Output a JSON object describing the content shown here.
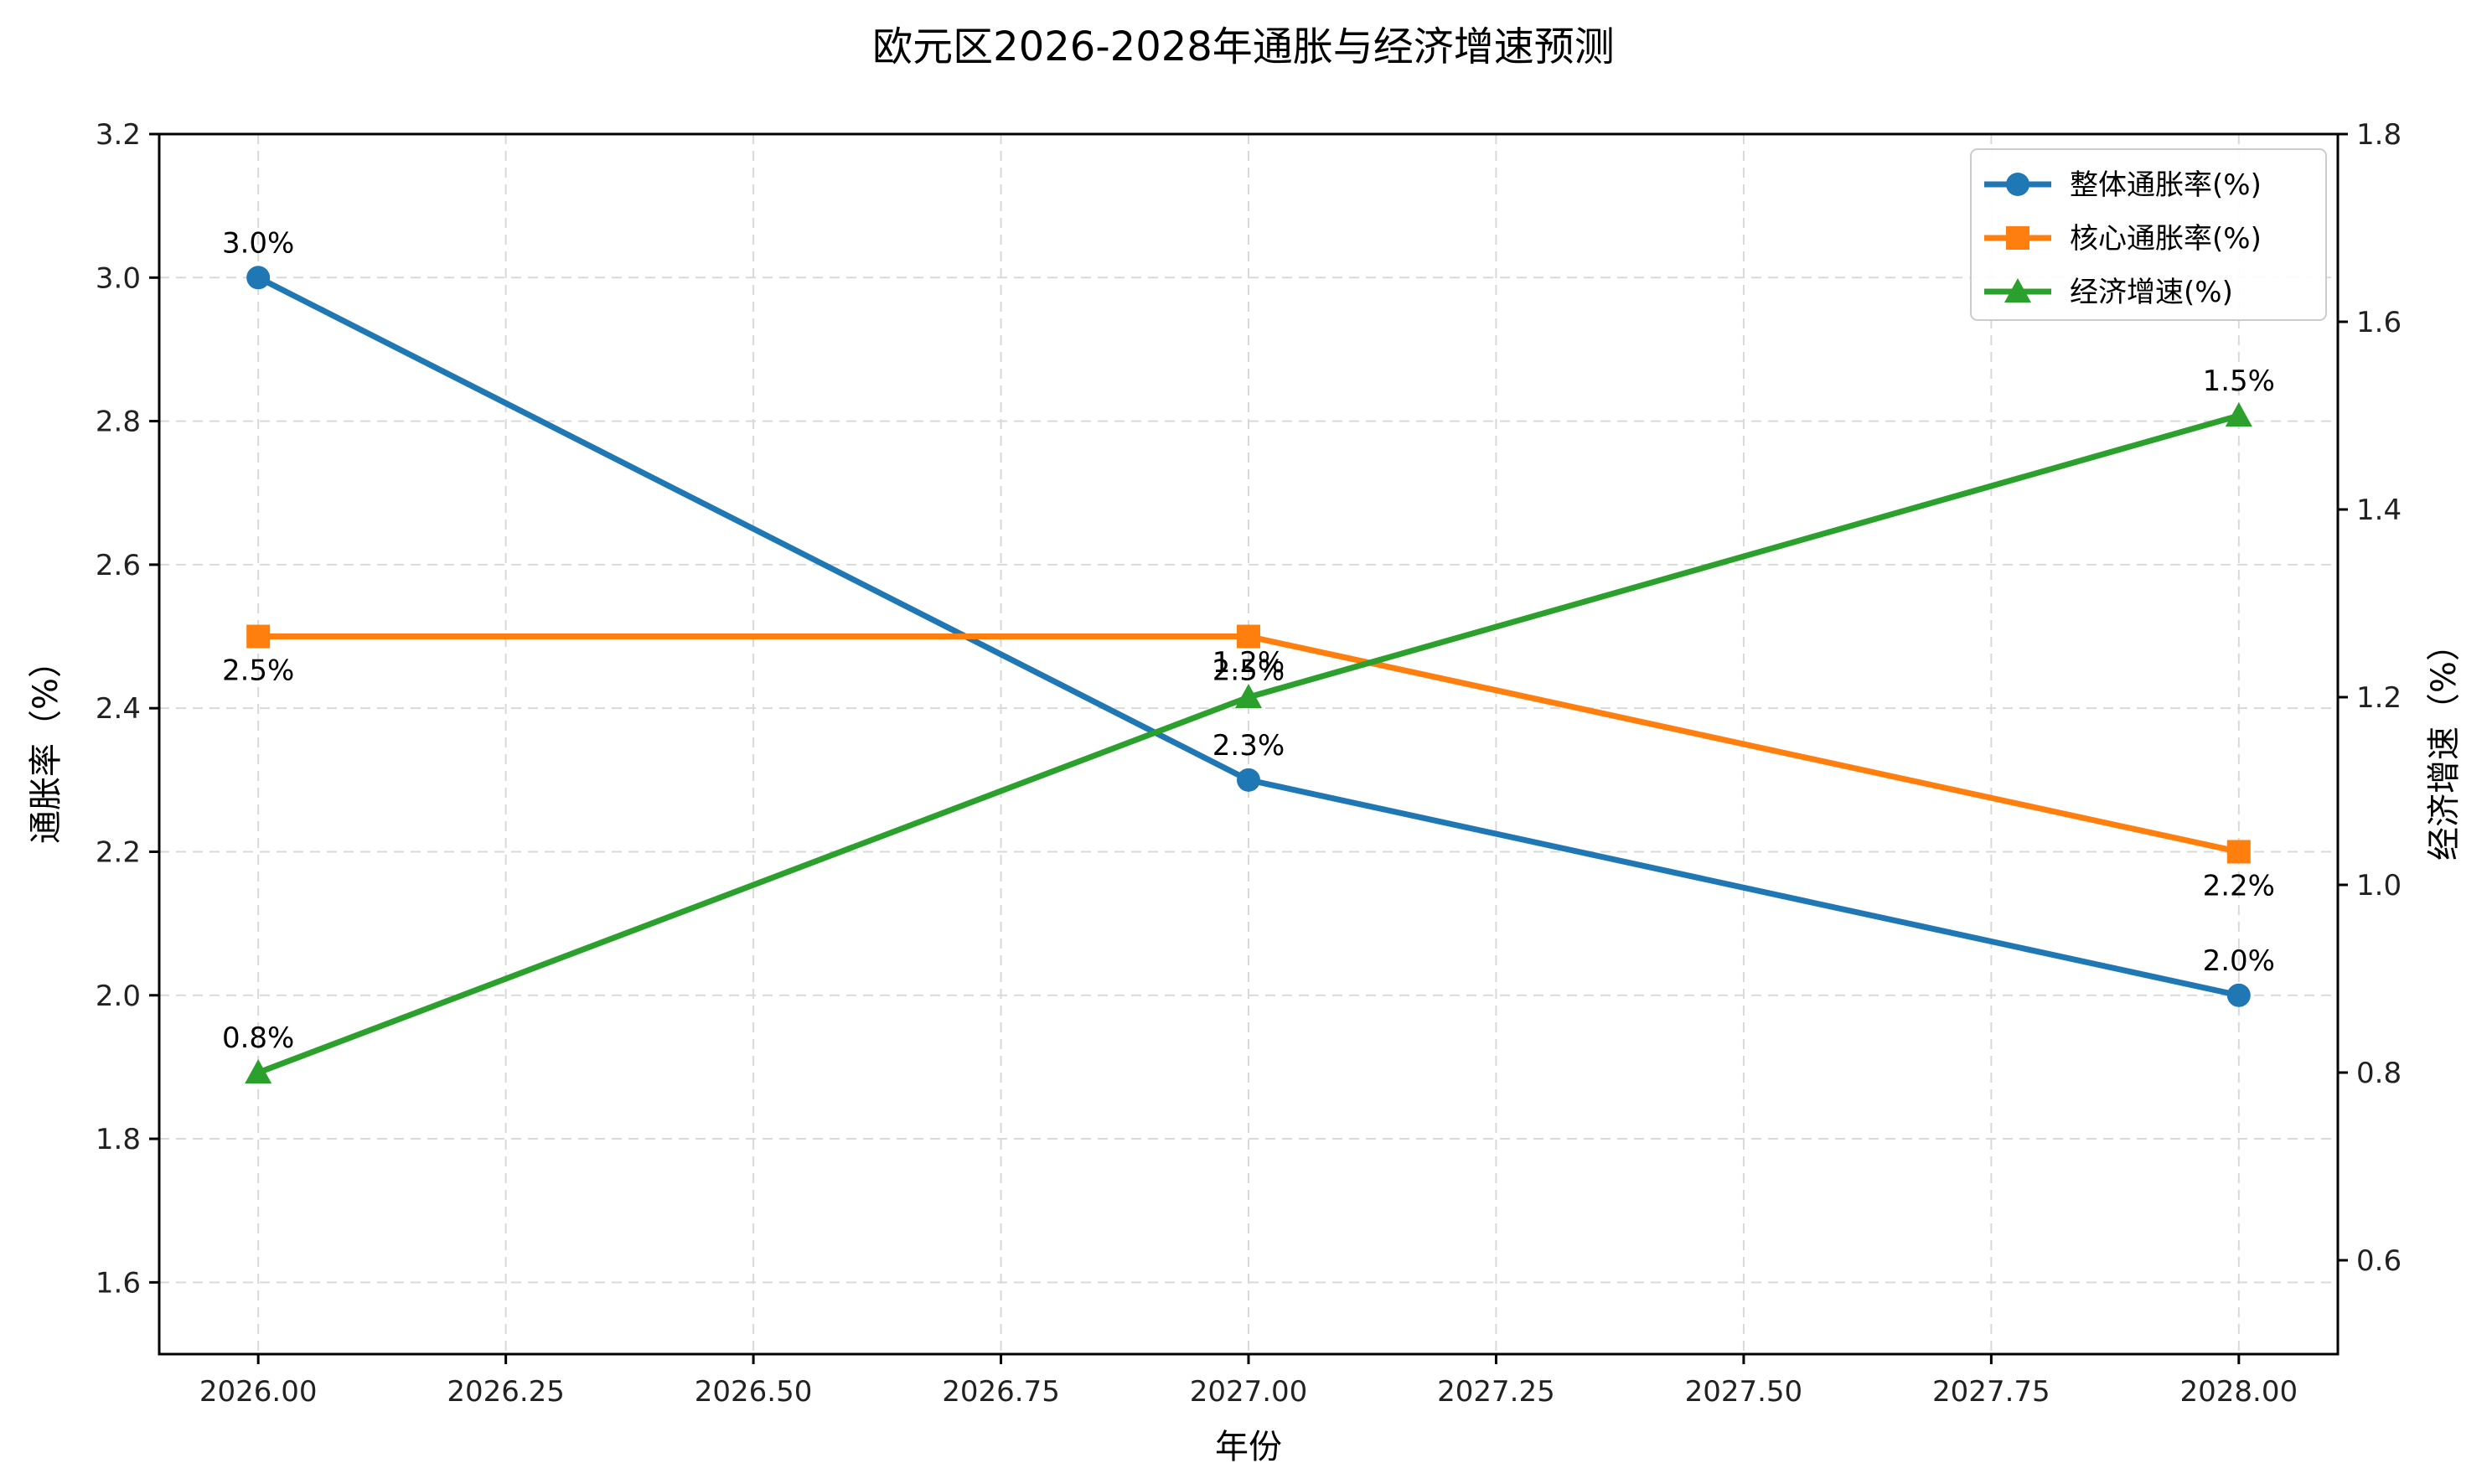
{
  "chart_data": {
    "type": "line",
    "title": "欧元区2026-2028年通胀与经济增速预测",
    "xlabel": "年份",
    "ylabel_left": "通胀率（%）",
    "ylabel_right": "经济增速（%）",
    "x": [
      2026,
      2027,
      2028
    ],
    "xlim": [
      2025.9,
      2028.1
    ],
    "ylim_left": [
      1.5,
      3.2
    ],
    "ylim_right": [
      0.5,
      1.8
    ],
    "x_ticks": [
      "2026.00",
      "2026.25",
      "2026.50",
      "2026.75",
      "2027.00",
      "2027.25",
      "2027.50",
      "2027.75",
      "2028.00"
    ],
    "x_tick_values": [
      2026.0,
      2026.25,
      2026.5,
      2026.75,
      2027.0,
      2027.25,
      2027.5,
      2027.75,
      2028.0
    ],
    "y_ticks_left": [
      "1.6",
      "1.8",
      "2.0",
      "2.2",
      "2.4",
      "2.6",
      "2.8",
      "3.0",
      "3.2"
    ],
    "y_tick_values_left": [
      1.6,
      1.8,
      2.0,
      2.2,
      2.4,
      2.6,
      2.8,
      3.0,
      3.2
    ],
    "y_ticks_right": [
      "0.6",
      "0.8",
      "1.0",
      "1.2",
      "1.4",
      "1.6",
      "1.8"
    ],
    "y_tick_values_right": [
      0.6,
      0.8,
      1.0,
      1.2,
      1.4,
      1.6,
      1.8
    ],
    "grid": true,
    "legend_position": "top-right",
    "series": [
      {
        "name": "整体通胀率(%)",
        "axis": "left",
        "color": "#1f77b4",
        "marker": "circle",
        "values": [
          3.0,
          2.3,
          2.0
        ],
        "labels": [
          "3.0%",
          "2.3%",
          "2.0%"
        ],
        "label_pos": [
          "above",
          "above",
          "above"
        ]
      },
      {
        "name": "核心通胀率(%)",
        "axis": "left",
        "color": "#ff7f0e",
        "marker": "square",
        "values": [
          2.5,
          2.5,
          2.2
        ],
        "labels": [
          "2.5%",
          "2.5%",
          "2.2%"
        ],
        "label_pos": [
          "below",
          "below",
          "below"
        ]
      },
      {
        "name": "经济增速(%)",
        "axis": "right",
        "color": "#2ca02c",
        "marker": "triangle",
        "values": [
          0.8,
          1.2,
          1.5
        ],
        "labels": [
          "0.8%",
          "1.2%",
          "1.5%"
        ],
        "label_pos": [
          "above",
          "above",
          "above"
        ]
      }
    ]
  }
}
